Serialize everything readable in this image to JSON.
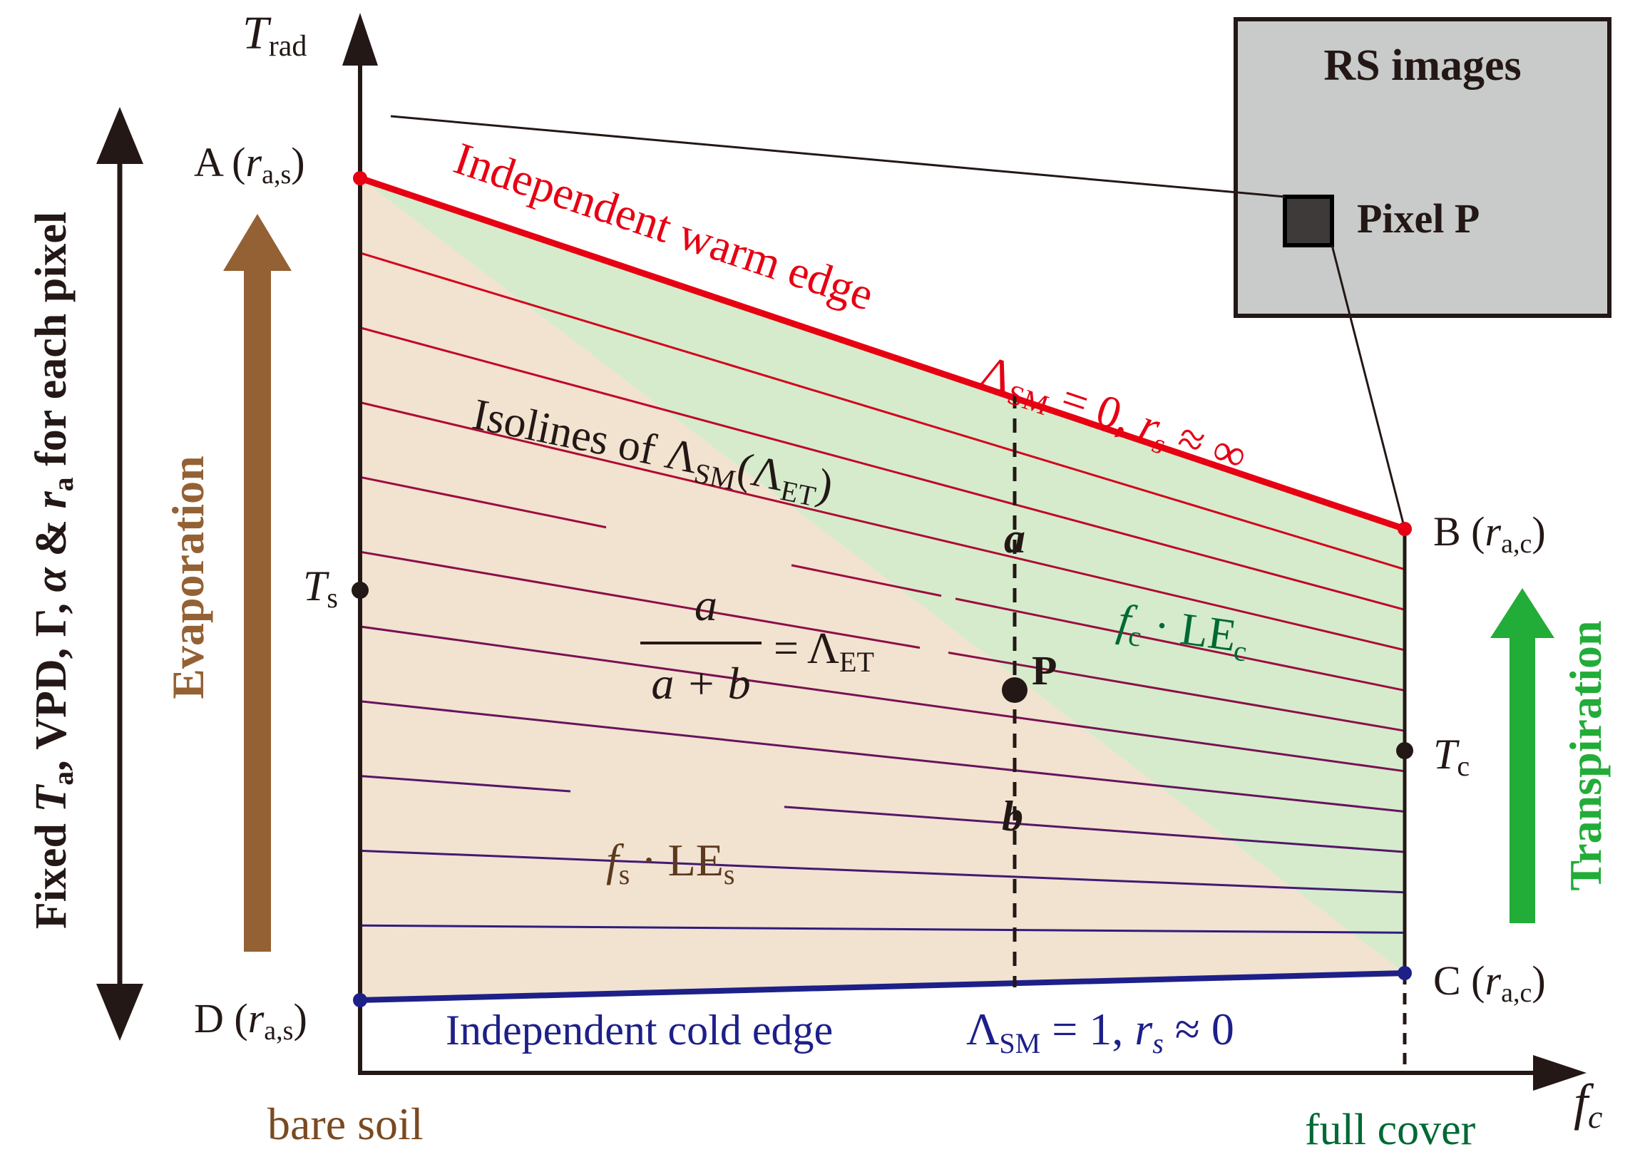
{
  "axes": {
    "y_label": "T",
    "y_label_sub": "rad",
    "x_label": "f",
    "x_label_sub": "c",
    "x_left_label": "bare soil",
    "x_right_label": "full cover"
  },
  "left_label": {
    "p1": "Fixed ",
    "p2": "T",
    "p3": "a",
    "p4": ", VPD, Γ, ",
    "p5": "α",
    "p6": " & ",
    "p7": "r",
    "p8": "a",
    "p9": " for each pixel"
  },
  "evaporation_label": "Evaporation",
  "transpiration_label": "Transpiration",
  "points": {
    "A": {
      "name": "A (",
      "sym": "r",
      "sub": "a,s",
      "close": ")"
    },
    "B": {
      "name": "B (",
      "sym": "r",
      "sub": "a,c",
      "close": ")"
    },
    "C": {
      "name": "C (",
      "sym": "r",
      "sub": "a,c",
      "close": ")"
    },
    "D": {
      "name": "D (",
      "sym": "r",
      "sub": "a,s",
      "close": ")"
    },
    "Ts": {
      "sym": "T",
      "sub": "s"
    },
    "Tc": {
      "sym": "T",
      "sub": "c"
    },
    "P": "P"
  },
  "warm_edge": {
    "text": "Independent warm edge",
    "lam": "Λ",
    "sub": "SM",
    "eq": " = 0,  ",
    "r": "r",
    "rsub": "s",
    "approx": " ≈ ∞"
  },
  "cold_edge": {
    "text": "Independent cold edge",
    "lam": "Λ",
    "sub": "SM",
    "eq": " = 1,  ",
    "r": "r",
    "rsub": "s",
    "approx": " ≈ 0"
  },
  "isolines": {
    "text": "Isolines of ",
    "lam": "Λ",
    "sub": "SM",
    "paren_open": "(",
    "lam2": "Λ",
    "sub2": "ET",
    "paren_close": ")"
  },
  "fraction": {
    "num": "a",
    "den": "a + b",
    "eq": "= Λ",
    "sub": "ET"
  },
  "seg_a": "a",
  "seg_b": "b",
  "fc_label": {
    "f": "f",
    "fsub": "c",
    "dot": " · LE",
    "sub": "c"
  },
  "fs_label": {
    "f": "f",
    "fsub": "s",
    "dot": " · LE",
    "sub": "s"
  },
  "rs_box": {
    "title": "RS images",
    "pixel": "Pixel P"
  },
  "colors": {
    "warm": "#e60012",
    "cold": "#1d2088",
    "soil_fill": "#f2e2d0",
    "veg_fill": "#d5ebcc",
    "evap_arrow": "#946134",
    "transp_arrow": "#22ac38",
    "box_fill": "#c9caca"
  }
}
